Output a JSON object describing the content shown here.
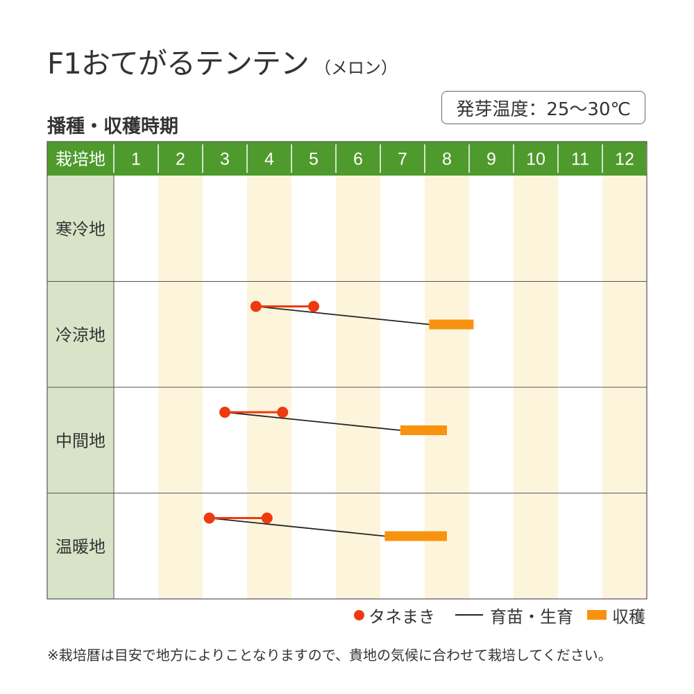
{
  "title": "F1おてがるテンテン",
  "title_sub": "（メロン）",
  "subtitle": "播種・収穫時期",
  "germination_temp": "発芽温度：25〜30℃",
  "colors": {
    "header_green": "#4e9a2c",
    "region_bg": "#d8e3c7",
    "stripe": "#fdf4dc",
    "sowing": "#ee3a0f",
    "seedling_line": "#222222",
    "harvest": "#f7930f"
  },
  "chart_data": {
    "type": "table",
    "header_label": "栽培地",
    "months": [
      "1",
      "2",
      "3",
      "4",
      "5",
      "6",
      "7",
      "8",
      "9",
      "10",
      "11",
      "12"
    ],
    "x_range": [
      1,
      13
    ],
    "regions": [
      {
        "name": "寒冷地",
        "sowing": null,
        "harvest": null
      },
      {
        "name": "冷涼地",
        "sowing": [
          4.2,
          5.5
        ],
        "harvest": [
          8.1,
          9.1
        ]
      },
      {
        "name": "中間地",
        "sowing": [
          3.5,
          4.8
        ],
        "harvest": [
          7.45,
          8.5
        ]
      },
      {
        "name": "温暖地",
        "sowing": [
          3.15,
          4.45
        ],
        "harvest": [
          7.1,
          8.5
        ]
      }
    ]
  },
  "legend": {
    "sowing": "タネまき",
    "seedling": "育苗・生育",
    "harvest": "収穫"
  },
  "footnote": "※栽培暦は目安で地方によりことなりますので、貴地の気候に合わせて栽培してください。"
}
